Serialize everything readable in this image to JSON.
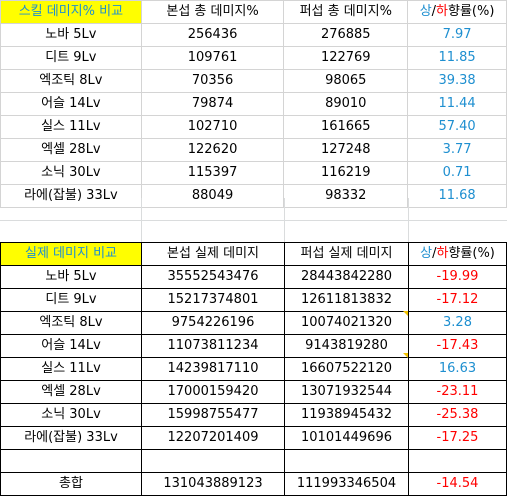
{
  "skill_table": {
    "headers": {
      "title": "스킬 데미지% 비교",
      "col_main": "본섭 총 데미지%",
      "col_test": "퍼섭 총 데미지%",
      "col_rate_sang": "상",
      "col_rate_slash": "/",
      "col_rate_ha": "하",
      "col_rate_rest": "향률(%)"
    },
    "rows": [
      {
        "name": "노바 5Lv",
        "main": "256436",
        "test": "276885",
        "rate": "7.97"
      },
      {
        "name": "디트 9Lv",
        "main": "109761",
        "test": "122769",
        "rate": "11.85"
      },
      {
        "name": "엑조틱 8Lv",
        "main": "70356",
        "test": "98065",
        "rate": "39.38"
      },
      {
        "name": "어슬 14Lv",
        "main": "79874",
        "test": "89010",
        "rate": "11.44"
      },
      {
        "name": "실스 11Lv",
        "main": "102710",
        "test": "161665",
        "rate": "57.40"
      },
      {
        "name": "엑셀 28Lv",
        "main": "122620",
        "test": "127248",
        "rate": "3.77"
      },
      {
        "name": "소닉 30Lv",
        "main": "115397",
        "test": "116219",
        "rate": "0.71"
      },
      {
        "name": "라에(잡불) 33Lv",
        "main": "88049",
        "test": "98332",
        "rate": "11.68"
      }
    ]
  },
  "real_table": {
    "headers": {
      "title": "실제 데미지 비교",
      "col_main": "본섭 실제 데미지",
      "col_test": "퍼섭 실제 데미지",
      "col_rate_sang": "상",
      "col_rate_slash": "/",
      "col_rate_ha": "하",
      "col_rate_rest": "향률(%)"
    },
    "rows": [
      {
        "name": "노바 5Lv",
        "main": "35552543476",
        "test": "28443842280",
        "rate": "-19.99",
        "sign": "neg"
      },
      {
        "name": "디트 9Lv",
        "main": "15217374801",
        "test": "12611813832",
        "rate": "-17.12",
        "sign": "neg"
      },
      {
        "name": "엑조틱 8Lv",
        "main": "9754226196",
        "test": "10074021320",
        "rate": "3.28",
        "sign": "pos"
      },
      {
        "name": "어슬 14Lv",
        "main": "11073811234",
        "test": "9143819280",
        "rate": "-17.43",
        "sign": "neg"
      },
      {
        "name": "실스 11Lv",
        "main": "14239817110",
        "test": "16607522120",
        "rate": "16.63",
        "sign": "pos"
      },
      {
        "name": "엑셀 28Lv",
        "main": "17000159420",
        "test": "13071932544",
        "rate": "-23.11",
        "sign": "neg"
      },
      {
        "name": "소닉 30Lv",
        "main": "15998755477",
        "test": "11938945432",
        "rate": "-25.38",
        "sign": "neg"
      },
      {
        "name": "라에(잡불) 33Lv",
        "main": "12207201409",
        "test": "10101449696",
        "rate": "-17.25",
        "sign": "neg"
      }
    ],
    "total": {
      "name": "총합",
      "main": "131043889123",
      "test": "111993346504",
      "rate": "-14.54"
    }
  }
}
